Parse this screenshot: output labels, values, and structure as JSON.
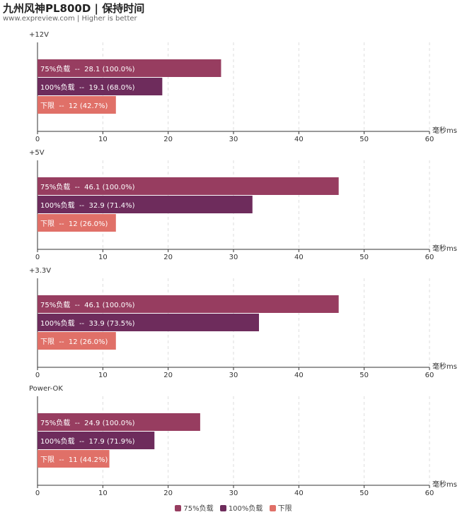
{
  "header": {
    "title": "九州风神PL800D | 保持时间",
    "subtitle": "www.expreview.com | Higher is better"
  },
  "colors": {
    "series": [
      "#973d60",
      "#6e2c5c",
      "#e07068"
    ]
  },
  "legend": {
    "items": [
      "75%负载",
      "100%负载",
      "下限"
    ]
  },
  "chart_data": [
    {
      "type": "bar",
      "orientation": "horizontal",
      "title": "+12V",
      "unit_label": "毫秒ms",
      "xlim": [
        0,
        60
      ],
      "ticks": [
        0,
        10,
        20,
        30,
        40,
        50,
        60
      ],
      "grid": true,
      "bars": [
        {
          "series": "75%负载",
          "value": 28.1,
          "label": "75%负载  --  28.1 (100.0%)"
        },
        {
          "series": "100%负载",
          "value": 19.1,
          "label": "100%负载  --  19.1 (68.0%)"
        },
        {
          "series": "下限",
          "value": 12,
          "label": "下限  --  12 (42.7%)"
        }
      ]
    },
    {
      "type": "bar",
      "orientation": "horizontal",
      "title": "+5V",
      "unit_label": "毫秒ms",
      "xlim": [
        0,
        60
      ],
      "ticks": [
        0,
        10,
        20,
        30,
        40,
        50,
        60
      ],
      "grid": true,
      "bars": [
        {
          "series": "75%负载",
          "value": 46.1,
          "label": "75%负载  --  46.1 (100.0%)"
        },
        {
          "series": "100%负载",
          "value": 32.9,
          "label": "100%负载  --  32.9 (71.4%)"
        },
        {
          "series": "下限",
          "value": 12,
          "label": "下限  --  12 (26.0%)"
        }
      ]
    },
    {
      "type": "bar",
      "orientation": "horizontal",
      "title": "+3.3V",
      "unit_label": "毫秒ms",
      "xlim": [
        0,
        60
      ],
      "ticks": [
        0,
        10,
        20,
        30,
        40,
        50,
        60
      ],
      "grid": true,
      "bars": [
        {
          "series": "75%负载",
          "value": 46.1,
          "label": "75%负载  --  46.1 (100.0%)"
        },
        {
          "series": "100%负载",
          "value": 33.9,
          "label": "100%负载  --  33.9 (73.5%)"
        },
        {
          "series": "下限",
          "value": 12,
          "label": "下限  --  12 (26.0%)"
        }
      ]
    },
    {
      "type": "bar",
      "orientation": "horizontal",
      "title": "Power-OK",
      "unit_label": "毫秒ms",
      "xlim": [
        0,
        60
      ],
      "ticks": [
        0,
        10,
        20,
        30,
        40,
        50,
        60
      ],
      "grid": true,
      "bars": [
        {
          "series": "75%负载",
          "value": 24.9,
          "label": "75%负载  --  24.9 (100.0%)"
        },
        {
          "series": "100%负载",
          "value": 17.9,
          "label": "100%负载  --  17.9 (71.9%)"
        },
        {
          "series": "下限",
          "value": 11,
          "label": "下限  --  11 (44.2%)"
        }
      ]
    }
  ]
}
